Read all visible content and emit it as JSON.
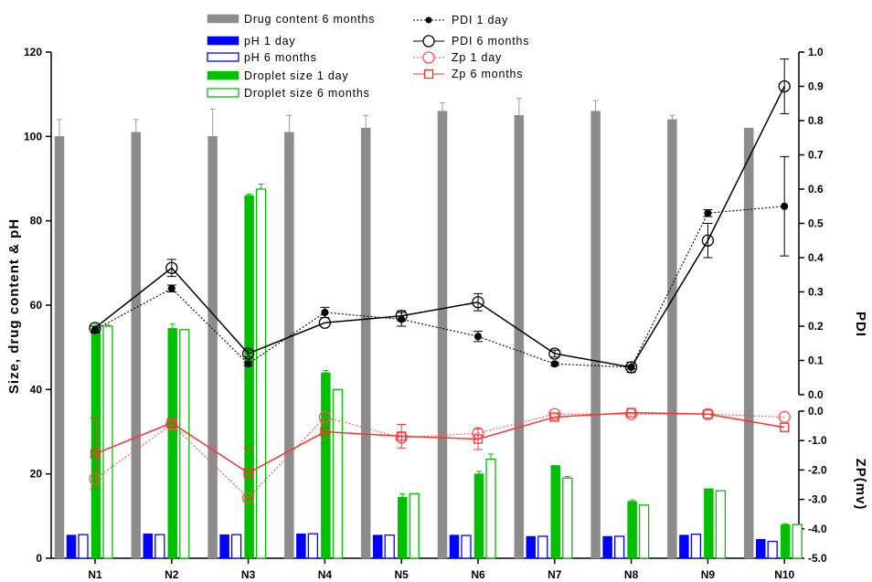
{
  "chart_data": {
    "type": "bar",
    "categories": [
      "N1",
      "N2",
      "N3",
      "N4",
      "N5",
      "N6",
      "N7",
      "N8",
      "N9",
      "N10"
    ],
    "y_left": {
      "label": "Size, drug content & pH",
      "range": [
        0,
        120
      ],
      "ticks": [
        0,
        20,
        40,
        60,
        80,
        100,
        120
      ]
    },
    "y_right_pdi": {
      "label": "PDI",
      "range": [
        0.0,
        1.0
      ],
      "ticks": [
        "0.0",
        "0.1",
        "0.2",
        "0.3",
        "0.4",
        "0.5",
        "0.6",
        "0.7",
        "0.8",
        "0.9",
        "1.0"
      ]
    },
    "y_right_zp": {
      "label": "ZP(mv)",
      "range": [
        -5.0,
        0.0
      ],
      "ticks": [
        "-5.0",
        "-4.0",
        "-3.0",
        "-2.0",
        "-1.0",
        "0.0"
      ]
    },
    "bar_series": [
      {
        "name": "Drug content 6 months",
        "color": "#8c8c8c",
        "fill": "solid",
        "values": [
          100,
          101,
          100,
          101,
          102,
          106,
          105,
          106,
          104,
          102
        ],
        "errors": [
          4,
          3,
          6.5,
          4,
          3,
          2,
          4,
          2.5,
          1,
          0
        ]
      },
      {
        "name": "pH 1 day",
        "color": "#0000ff",
        "fill": "solid",
        "values": [
          5.5,
          5.8,
          5.6,
          5.8,
          5.5,
          5.5,
          5.2,
          5.2,
          5.5,
          4.5
        ],
        "errors": [
          0,
          0,
          0,
          0,
          0,
          0,
          0,
          0,
          0,
          0
        ]
      },
      {
        "name": "pH 6 months",
        "color": "#0000ff",
        "fill": "open",
        "values": [
          5.6,
          5.6,
          5.6,
          5.8,
          5.5,
          5.4,
          5.2,
          5.2,
          5.7,
          4.0
        ],
        "errors": [
          0,
          0,
          0,
          0,
          0,
          0,
          0,
          0,
          0,
          0
        ]
      },
      {
        "name": "Droplet size 1 day",
        "color": "#00c000",
        "fill": "solid",
        "values": [
          54.5,
          54.5,
          86,
          44,
          14.5,
          20,
          22,
          13.5,
          16.5,
          8
        ],
        "errors": [
          1,
          1,
          0.3,
          0.5,
          0.8,
          0.6,
          0,
          0.3,
          0,
          0.2
        ]
      },
      {
        "name": "Droplet size 6 months",
        "color": "#00c000",
        "fill": "open",
        "values": [
          55,
          54.2,
          87.5,
          40,
          15.3,
          23.5,
          19,
          12.6,
          16,
          8
        ],
        "errors": [
          0.3,
          0,
          1.2,
          0,
          0,
          1.2,
          0.4,
          0,
          0,
          0
        ]
      }
    ],
    "line_series": [
      {
        "name": "PDI 1 day",
        "axis": "pdi",
        "color": "#000000",
        "marker": "dot",
        "dash": "dotted",
        "values": [
          0.19,
          0.31,
          0.09,
          0.24,
          0.22,
          0.17,
          0.09,
          0.08,
          0.53,
          0.55
        ],
        "errors": [
          0.01,
          0.01,
          0.005,
          0.015,
          0.02,
          0.015,
          0.005,
          0.005,
          0.01,
          0.145
        ]
      },
      {
        "name": "PDI 6 months",
        "axis": "pdi",
        "color": "#000000",
        "marker": "circle-open",
        "dash": "solid",
        "values": [
          0.195,
          0.37,
          0.12,
          0.21,
          0.23,
          0.27,
          0.12,
          0.08,
          0.45,
          0.9
        ],
        "errors": [
          0,
          0.025,
          0.01,
          0,
          0.015,
          0.025,
          0.01,
          0.015,
          0.05,
          0.08
        ]
      },
      {
        "name": "Zp 1 day",
        "axis": "zp",
        "color": "#ff5050",
        "marker": "circle-open",
        "dash": "dotted",
        "values": [
          -2.3,
          -0.45,
          -2.95,
          -0.2,
          -0.9,
          -0.75,
          -0.1,
          -0.1,
          -0.1,
          -0.2
        ],
        "errors": [
          0,
          0,
          0,
          0,
          0,
          0,
          0,
          0,
          0,
          0
        ]
      },
      {
        "name": "Zp 6 months",
        "axis": "zp",
        "color": "#ff3030",
        "marker": "square-open",
        "dash": "solid",
        "values": [
          -1.45,
          -0.4,
          -2.1,
          -0.7,
          -0.85,
          -0.95,
          -0.2,
          -0.05,
          -0.1,
          -0.55
        ],
        "errors": [
          1.2,
          0.15,
          0.85,
          0.4,
          0.4,
          0.35,
          0,
          0,
          0,
          0
        ]
      }
    ],
    "grid": false,
    "legend_position": "top"
  }
}
